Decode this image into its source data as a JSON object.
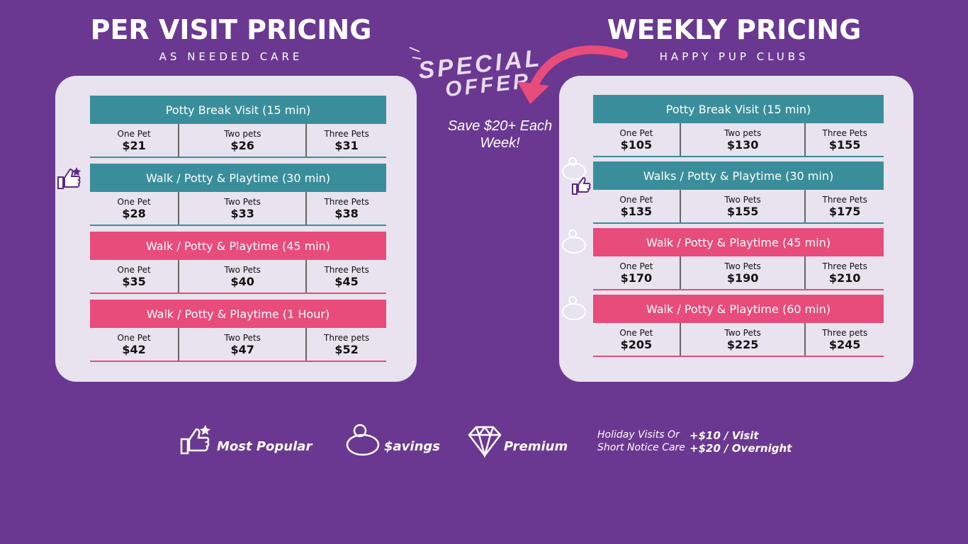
{
  "left": {
    "title": "PER VISIT PRICING",
    "subtitle": "AS NEEDED CARE",
    "sections": [
      {
        "heading": "Potty Break Visit (15 min)",
        "color": "#3a8e9b",
        "cells": [
          {
            "label": "One Pet",
            "price": "$21"
          },
          {
            "label": "Two pets",
            "price": "$26"
          },
          {
            "label": "Three Pets",
            "price": "$31"
          }
        ]
      },
      {
        "heading": "Walk / Potty & Playtime (30 min)",
        "color": "#3a8e9b",
        "cells": [
          {
            "label": "One Pet",
            "price": "$28"
          },
          {
            "label": "Two Pets",
            "price": "$33"
          },
          {
            "label": "Three Pets",
            "price": "$38"
          }
        ]
      },
      {
        "heading": "Walk / Potty & Playtime (45 min)",
        "color": "#e84c7a",
        "cells": [
          {
            "label": "One Pet",
            "price": "$35"
          },
          {
            "label": "Two Pets",
            "price": "$40"
          },
          {
            "label": "Three Pets",
            "price": "$45"
          }
        ]
      },
      {
        "heading": "Walk / Potty & Playtime (1 Hour)",
        "color": "#e84c7a",
        "cells": [
          {
            "label": "One Pet",
            "price": "$42"
          },
          {
            "label": "Two Pets",
            "price": "$47"
          },
          {
            "label": "Three pets",
            "price": "$52"
          }
        ]
      }
    ]
  },
  "right": {
    "title": "WEEKLY PRICING",
    "subtitle": "HAPPY PUP CLUBS",
    "sections": [
      {
        "heading": "Potty Break Visit (15 min)",
        "color": "#3a8e9b",
        "cells": [
          {
            "label": "One Pet",
            "price": "$105"
          },
          {
            "label": "Two pets",
            "price": "$130"
          },
          {
            "label": "Three Pets",
            "price": "$155"
          }
        ]
      },
      {
        "heading": "Walks / Potty & Playtime (30 min)",
        "color": "#3a8e9b",
        "cells": [
          {
            "label": "One Pet",
            "price": "$135"
          },
          {
            "label": "Two Pets",
            "price": "$155"
          },
          {
            "label": "Three Pets",
            "price": "$175"
          }
        ]
      },
      {
        "heading": "Walk / Potty & Playtime (45 min)",
        "color": "#e84c7a",
        "cells": [
          {
            "label": "One Pet",
            "price": "$170"
          },
          {
            "label": "Two Pets",
            "price": "$190"
          },
          {
            "label": "Three Pets",
            "price": "$210"
          }
        ]
      },
      {
        "heading": "Walk / Potty & Playtime (60 min)",
        "color": "#e84c7a",
        "cells": [
          {
            "label": "One Pet",
            "price": "$205"
          },
          {
            "label": "Two Pets",
            "price": "$225"
          },
          {
            "label": "Three pets",
            "price": "$245"
          }
        ]
      }
    ]
  },
  "special_offer": {
    "line1": "SPECIAL",
    "line2": "OFFER",
    "note": "Save $20+ Each Week!"
  },
  "legend": {
    "popular": "Most Popular",
    "savings": "$avings",
    "premium": "Premium",
    "extra_label1": "Holiday Visits Or",
    "extra_label2": "Short Notice Care",
    "extra_price1": "+$10 / Visit",
    "extra_price2": "+$20 / Overnight"
  }
}
